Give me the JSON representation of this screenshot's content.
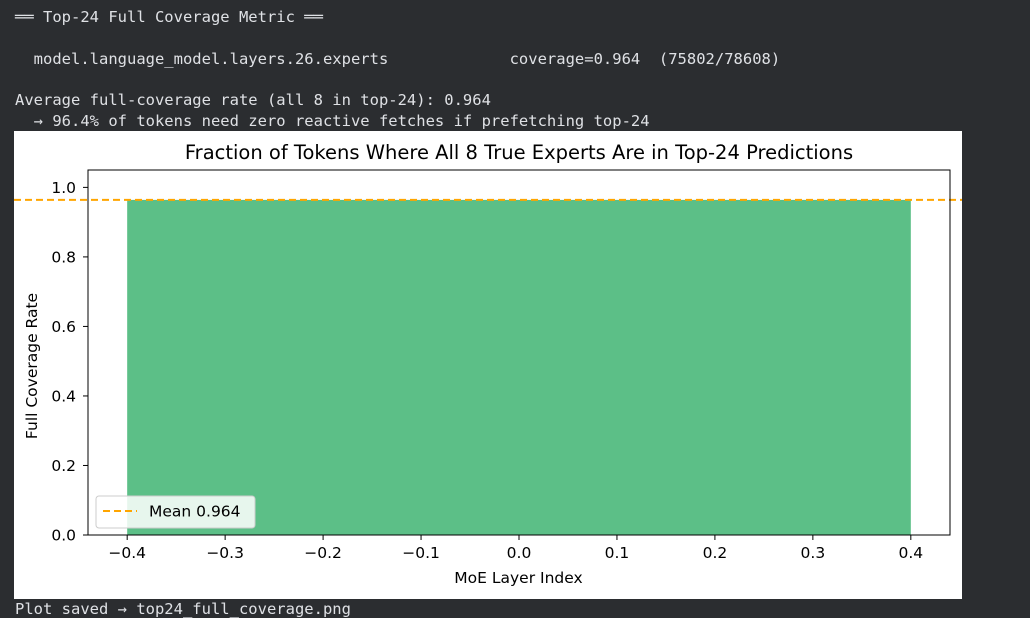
{
  "output": {
    "header": "══ Top-24 Full Coverage Metric ══",
    "layer_row": "  model.language_model.layers.26.experts             coverage=0.964  (75802/78608)",
    "average_line": "Average full-coverage rate (all 8 in top-24): 0.964",
    "arrow_line": "  → 96.4% of tokens need zero reactive fetches if prefetching top-24",
    "saved_line": "Plot saved → top24_full_coverage.png"
  },
  "colors": {
    "bar": "#5cbf87",
    "mean_line": "#ffa500",
    "background": "#2b2d30",
    "text": "#dfe1e5"
  },
  "chart_data": {
    "type": "bar",
    "title": "Fraction of Tokens Where All 8 True Experts Are in Top-24 Predictions",
    "xlabel": "MoE Layer Index",
    "ylabel": "Full Coverage Rate",
    "x": [
      0
    ],
    "values": [
      0.964
    ],
    "bar_width": 0.8,
    "xlim": [
      -0.44,
      0.44
    ],
    "ylim": [
      0,
      1.05
    ],
    "xticks": [
      "−0.4",
      "−0.3",
      "−0.2",
      "−0.1",
      "0.0",
      "0.1",
      "0.2",
      "0.3",
      "0.4"
    ],
    "xtick_values": [
      -0.4,
      -0.3,
      -0.2,
      -0.1,
      0.0,
      0.1,
      0.2,
      0.3,
      0.4
    ],
    "yticks": [
      "0.0",
      "0.2",
      "0.4",
      "0.6",
      "0.8",
      "1.0"
    ],
    "ytick_values": [
      0.0,
      0.2,
      0.4,
      0.6,
      0.8,
      1.0
    ],
    "mean": 0.964,
    "legend": {
      "label": "Mean 0.964",
      "placement": "lower-left"
    },
    "grid": false
  }
}
